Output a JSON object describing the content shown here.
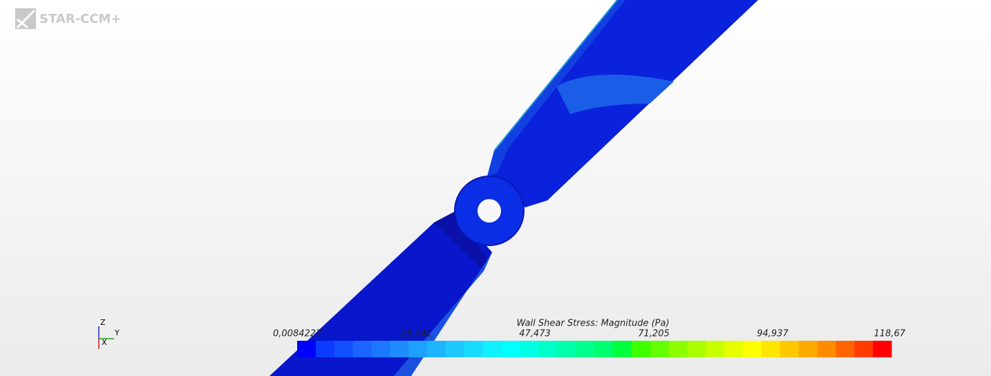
{
  "logo": "STAR-CCM+",
  "triad": {
    "z": "Z",
    "y": "Y",
    "x": "X"
  },
  "colorbar": {
    "title": "Wall Shear Stress: Magnitude (Pa)",
    "labels": [
      "0,0084227",
      "23,741",
      "47,473",
      "71,205",
      "94,937",
      "118,67"
    ],
    "colors": [
      "#0000ff",
      "#0a3cff",
      "#1250ff",
      "#1a64ff",
      "#1c78ff",
      "#1e8cff",
      "#1ea0ff",
      "#1eb4ff",
      "#1ec8ff",
      "#18dcff",
      "#10f0ff",
      "#00ffff",
      "#00ffe6",
      "#00ffc8",
      "#00ffaa",
      "#00ff8c",
      "#00ff6e",
      "#00ff3c",
      "#3cff00",
      "#64ff00",
      "#8cff00",
      "#aaff00",
      "#c8ff00",
      "#e6ff00",
      "#ffff00",
      "#ffe600",
      "#ffc800",
      "#ffaa00",
      "#ff8c00",
      "#ff6400",
      "#ff3c00",
      "#ff0000"
    ]
  }
}
